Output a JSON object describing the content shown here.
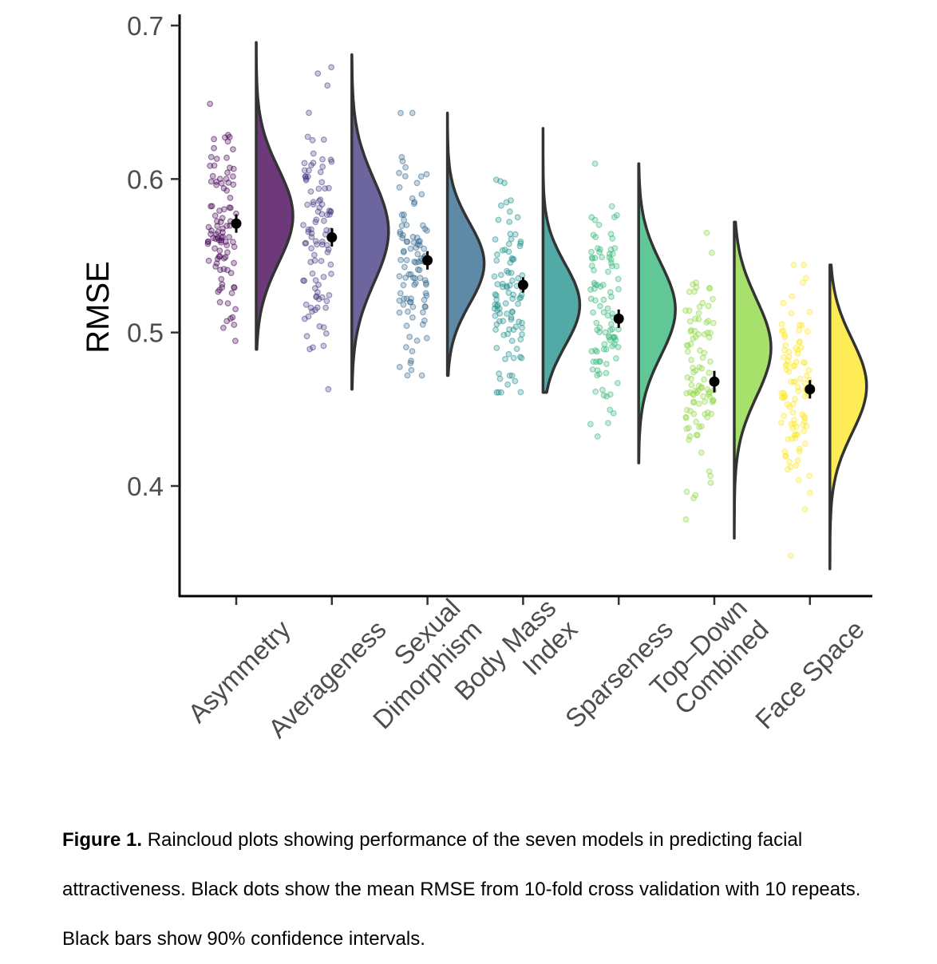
{
  "chart_data": {
    "type": "raincloud",
    "ylabel": "RMSE",
    "xlabel": "",
    "ylim": [
      0.33,
      0.71
    ],
    "yticks": [
      0.4,
      0.5,
      0.6,
      0.7
    ],
    "ytick_labels": [
      "0.4",
      "0.5",
      "0.6",
      "0.7"
    ],
    "grid": false,
    "categories": [
      {
        "label_lines": [
          "Asymmetry"
        ],
        "mean": 0.571,
        "ci": [
          0.565,
          0.577
        ],
        "min": 0.489,
        "max": 0.689,
        "mode": 0.576,
        "color": "#440154"
      },
      {
        "label_lines": [
          "Averageness"
        ],
        "mean": 0.562,
        "ci": [
          0.556,
          0.568
        ],
        "min": 0.463,
        "max": 0.681,
        "mode": 0.566,
        "color": "#443a83"
      },
      {
        "label_lines": [
          "Sexual",
          "Dimorphism"
        ],
        "mean": 0.547,
        "ci": [
          0.541,
          0.553
        ],
        "min": 0.472,
        "max": 0.643,
        "mode": 0.545,
        "color": "#31688e"
      },
      {
        "label_lines": [
          "Body Mass",
          "Index"
        ],
        "mean": 0.531,
        "ci": [
          0.526,
          0.536
        ],
        "min": 0.461,
        "max": 0.633,
        "mode": 0.518,
        "color": "#21918c"
      },
      {
        "label_lines": [
          "Sparseness"
        ],
        "mean": 0.509,
        "ci": [
          0.503,
          0.515
        ],
        "min": 0.415,
        "max": 0.61,
        "mode": 0.515,
        "color": "#35b779"
      },
      {
        "label_lines": [
          "Top–Down",
          "Combined"
        ],
        "mean": 0.468,
        "ci": [
          0.461,
          0.475
        ],
        "min": 0.366,
        "max": 0.572,
        "mode": 0.49,
        "color": "#90d743"
      },
      {
        "label_lines": [
          "Face Space"
        ],
        "mean": 0.463,
        "ci": [
          0.457,
          0.469
        ],
        "min": 0.346,
        "max": 0.544,
        "mode": 0.465,
        "color": "#fde725"
      }
    ]
  },
  "caption": {
    "label": "Figure 1.",
    "text": " Raincloud plots showing performance of the seven models in predicting facial attractiveness. Black dots show the mean RMSE from 10-fold cross validation with 10 repeats. Black bars show 90% confidence intervals."
  }
}
